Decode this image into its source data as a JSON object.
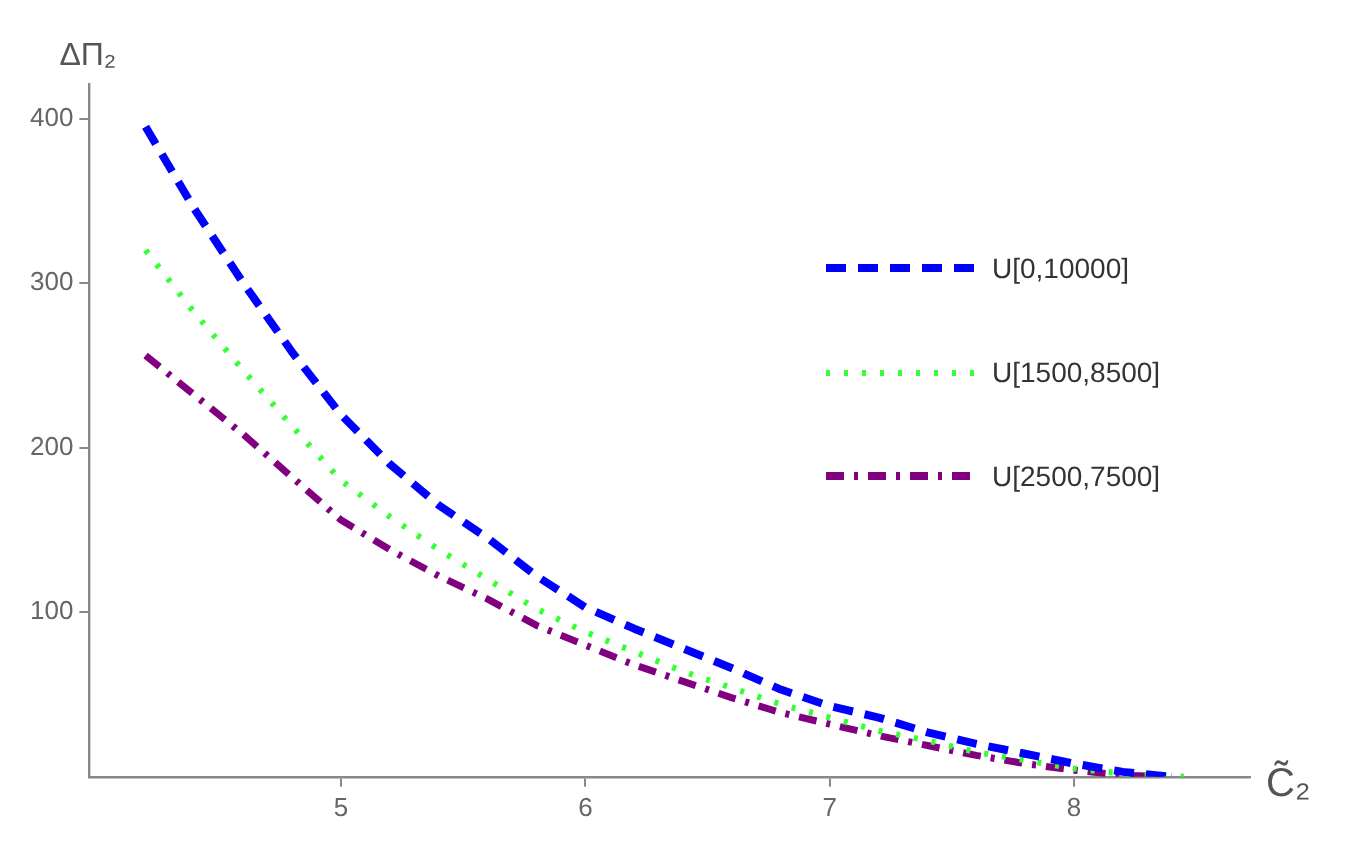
{
  "chart_data": {
    "type": "line",
    "xlabel": "C̃₂",
    "ylabel": "ΔΠ₂",
    "xlim": [
      3.97,
      8.72
    ],
    "ylim": [
      0,
      421
    ],
    "xticks": [
      5,
      6,
      7,
      8
    ],
    "yticks": [
      100,
      200,
      300,
      400
    ],
    "grid": false,
    "legend": "right",
    "marker": "none",
    "series": [
      {
        "name": "U[0,10000]",
        "color": "#0000ff",
        "line_style": "dashed",
        "x": [
          4.2,
          4.4,
          4.6,
          4.8,
          5.0,
          5.2,
          5.4,
          5.6,
          5.8,
          6.0,
          6.2,
          6.4,
          6.6,
          6.8,
          7.0,
          7.2,
          7.4,
          7.6,
          7.8,
          8.0,
          8.2,
          8.4
        ],
        "values": [
          395,
          345,
          300,
          258,
          220,
          190,
          165,
          145,
          122,
          103,
          90,
          78,
          66,
          53,
          43,
          36,
          27,
          20,
          14,
          8,
          3,
          0
        ]
      },
      {
        "name": "U[1500,8500]",
        "color": "#33ff33",
        "line_style": "dotted",
        "x": [
          4.2,
          4.4,
          4.6,
          4.8,
          5.0,
          5.2,
          5.4,
          5.6,
          5.8,
          6.0,
          6.2,
          6.4,
          6.6,
          6.8,
          7.0,
          7.2,
          7.4,
          7.6,
          7.8,
          8.0,
          8.2,
          8.45
        ],
        "values": [
          320,
          282,
          247,
          213,
          180,
          158,
          138,
          120,
          102,
          88,
          76,
          64,
          54,
          44,
          36,
          28,
          22,
          15,
          10,
          5,
          2,
          0
        ]
      },
      {
        "name": "U[2500,7500]",
        "color": "#800080",
        "line_style": "dashdot",
        "x": [
          4.2,
          4.4,
          4.6,
          4.8,
          5.0,
          5.2,
          5.4,
          5.6,
          5.8,
          6.0,
          6.2,
          6.4,
          6.6,
          6.8,
          7.0,
          7.2,
          7.4,
          7.6,
          7.8,
          8.0,
          8.2,
          8.4
        ],
        "values": [
          256,
          232,
          208,
          182,
          156,
          138,
          122,
          108,
          92,
          80,
          68,
          58,
          48,
          39,
          32,
          25,
          19,
          13,
          8,
          4,
          1,
          0
        ]
      }
    ]
  }
}
